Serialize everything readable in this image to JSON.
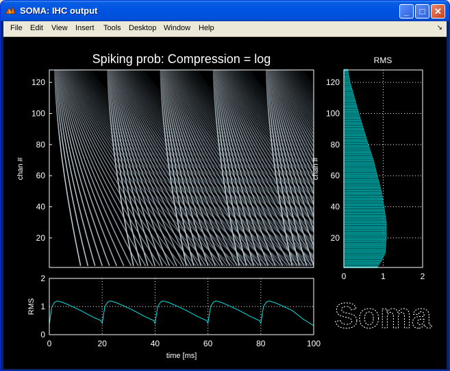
{
  "window": {
    "title": "SOMA: IHC output",
    "minimize_glyph": "_",
    "maximize_glyph": "□",
    "close_glyph": "✕"
  },
  "menubar": {
    "items": [
      "File",
      "Edit",
      "View",
      "Insert",
      "Tools",
      "Desktop",
      "Window",
      "Help"
    ],
    "dock_glyph": "↘"
  },
  "logo_text": "Soma",
  "colors": {
    "trace": "#00e5e5",
    "axes_bg": "#000000",
    "axes_fg": "#ffffff",
    "grid": "#ffffff"
  },
  "chart_data": [
    {
      "type": "heatmap",
      "title": "Spiking prob: Compression = log",
      "xlabel": "",
      "ylabel": "chan #",
      "ylim": [
        1,
        128
      ],
      "y_ticks": [
        20,
        40,
        60,
        80,
        100,
        120
      ],
      "periods_ms": 20,
      "x_range_ms": [
        0,
        100
      ],
      "colormap": "bone"
    },
    {
      "type": "bar",
      "orientation": "horizontal",
      "title": "RMS",
      "ylabel": "chan #",
      "xlim": [
        0,
        2
      ],
      "ylim": [
        1,
        128
      ],
      "x_ticks": [
        0,
        1,
        2
      ],
      "y_ticks": [
        20,
        40,
        60,
        80,
        100,
        120
      ],
      "grid": true,
      "profile": {
        "chan": [
          1,
          5,
          10,
          20,
          30,
          40,
          50,
          60,
          70,
          80,
          90,
          100,
          110,
          120,
          128
        ],
        "rms": [
          0.85,
          0.95,
          1.05,
          1.08,
          1.08,
          1.02,
          0.95,
          0.85,
          0.75,
          0.62,
          0.5,
          0.38,
          0.27,
          0.16,
          0.1
        ]
      }
    },
    {
      "type": "line",
      "xlabel": "time [ms]",
      "ylabel": "RMS",
      "xlim": [
        0,
        100
      ],
      "ylim": [
        0,
        2
      ],
      "x_ticks": [
        0,
        20,
        40,
        60,
        80,
        100
      ],
      "y_ticks": [
        0,
        1,
        2
      ],
      "grid": true,
      "series": [
        {
          "x": [
            0,
            0.5,
            1,
            2,
            3,
            5,
            8,
            12,
            16,
            19.5,
            20,
            20.5,
            21,
            22,
            23,
            25,
            28,
            32,
            36,
            39.5,
            40,
            40.5,
            41,
            42,
            43,
            45,
            48,
            52,
            56,
            59.5,
            60,
            60.5,
            61,
            62,
            63,
            65,
            68,
            72,
            76,
            79.5,
            80,
            80.5,
            81,
            82,
            83,
            85,
            88,
            92,
            96,
            100
          ],
          "y": [
            0.35,
            0.7,
            1.0,
            1.15,
            1.2,
            1.15,
            1.03,
            0.85,
            0.65,
            0.5,
            0.4,
            0.7,
            1.0,
            1.15,
            1.2,
            1.15,
            1.03,
            0.85,
            0.65,
            0.5,
            0.4,
            0.7,
            1.0,
            1.15,
            1.2,
            1.15,
            1.03,
            0.85,
            0.65,
            0.5,
            0.4,
            0.7,
            1.0,
            1.15,
            1.2,
            1.15,
            1.03,
            0.85,
            0.65,
            0.5,
            0.4,
            0.7,
            1.0,
            1.15,
            1.2,
            1.15,
            1.03,
            0.85,
            0.55,
            0.32
          ]
        }
      ]
    }
  ]
}
